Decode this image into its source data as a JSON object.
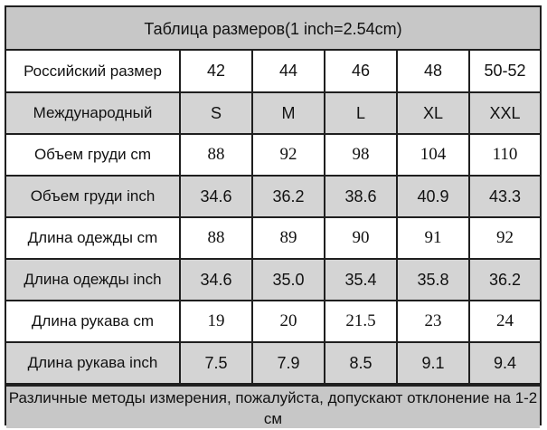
{
  "title": "Таблица размеров(1 inch=2.54cm)",
  "rows": [
    {
      "label": "Российский размер",
      "cells": [
        "42",
        "44",
        "46",
        "48",
        "50-52"
      ]
    },
    {
      "label": "Международный",
      "cells": [
        "S",
        "M",
        "L",
        "XL",
        "XXL"
      ]
    },
    {
      "label": "Объем груди cm",
      "cells": [
        "88",
        "92",
        "98",
        "104",
        "110"
      ]
    },
    {
      "label": "Объем груди inch",
      "cells": [
        "34.6",
        "36.2",
        "38.6",
        "40.9",
        "43.3"
      ]
    },
    {
      "label": "Длина одежды cm",
      "cells": [
        "88",
        "89",
        "90",
        "91",
        "92"
      ]
    },
    {
      "label": "Длина одежды inch",
      "cells": [
        "34.6",
        "35.0",
        "35.4",
        "35.8",
        "36.2"
      ]
    },
    {
      "label": "Длина рукава cm",
      "cells": [
        "19",
        "20",
        "21.5",
        "23",
        "24"
      ]
    },
    {
      "label": "Длина рукава inch",
      "cells": [
        "7.5",
        "7.9",
        "8.5",
        "9.1",
        "9.4"
      ]
    }
  ],
  "footer": "Различные методы измерения, пожалуйста, допускают отклонение на 1-2 см",
  "colors": {
    "header_gray": "#c7c7c7",
    "row_gray": "#d4d4d4",
    "border": "#1f1f1f"
  }
}
